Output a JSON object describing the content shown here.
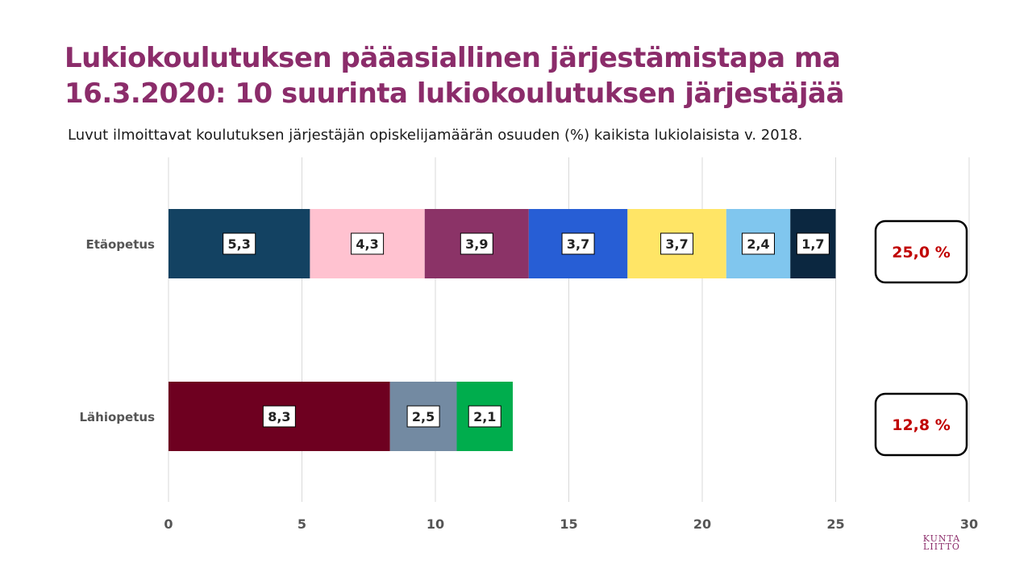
{
  "title": "Lukiokoulutuksen pääasiallinen järjestämistapa ma 16.3.2020: 10 suurinta lukiokoulutuksen järjestäjää",
  "subtitle": "Luvut ilmoittavat koulutuksen järjestäjän opiskelijamäärän osuuden (%) kaikista lukiolaisista v. 2018.",
  "logo": {
    "line1": "KUNTA",
    "line2": "LIITTO"
  },
  "chart_data": {
    "type": "bar",
    "orientation": "horizontal",
    "stacked": true,
    "xlim": [
      0,
      30
    ],
    "xticks": [
      0,
      5,
      10,
      15,
      20,
      25,
      30
    ],
    "xtick_labels": [
      "0",
      "5",
      "10",
      "15",
      "20",
      "25",
      "30"
    ],
    "grid": true,
    "rows": [
      {
        "label": "Etäopetus",
        "total_label": "25,0 %",
        "segments": [
          {
            "value": 5.3,
            "label": "5,3",
            "color": "#134262"
          },
          {
            "value": 4.3,
            "label": "4,3",
            "color": "#ffc2d0"
          },
          {
            "value": 3.9,
            "label": "3,9",
            "color": "#8b3367"
          },
          {
            "value": 3.7,
            "label": "3,7",
            "color": "#275ed5"
          },
          {
            "value": 3.7,
            "label": "3,7",
            "color": "#ffe566"
          },
          {
            "value": 2.4,
            "label": "2,4",
            "color": "#80c6ee"
          },
          {
            "value": 1.7,
            "label": "1,7",
            "color": "#0b2740"
          }
        ]
      },
      {
        "label": "Lähiopetus",
        "total_label": "12,8 %",
        "segments": [
          {
            "value": 8.3,
            "label": "8,3",
            "color": "#6e0020"
          },
          {
            "value": 2.5,
            "label": "2,5",
            "color": "#738aa2"
          },
          {
            "value": 2.1,
            "label": "2,1",
            "color": "#00ad4d"
          }
        ]
      }
    ],
    "colors": {
      "category_label": "#555555",
      "tick_label": "#555555",
      "grid": "#d9d9d9",
      "total_text": "#c00000",
      "total_box_border": "#000000",
      "data_label_text": "#222222"
    }
  }
}
